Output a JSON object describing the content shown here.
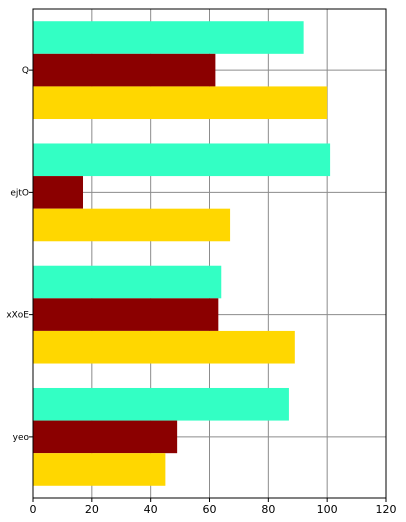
{
  "chart_data": {
    "type": "bar",
    "orientation": "horizontal",
    "title": "",
    "xlabel": "",
    "ylabel": "",
    "categories": [
      "Q",
      "ejtO",
      "xXoE",
      "yeo"
    ],
    "series": [
      {
        "color": "#33ffc4",
        "values": [
          92,
          101,
          64,
          87
        ]
      },
      {
        "color": "#8b0000",
        "values": [
          62,
          17,
          63,
          49
        ]
      },
      {
        "color": "#ffd700",
        "values": [
          100,
          67,
          89,
          45
        ]
      }
    ],
    "xlim": [
      0,
      120
    ],
    "xticks": [
      0,
      20,
      40,
      60,
      80,
      100,
      120
    ],
    "grid": true,
    "legend": "none"
  }
}
